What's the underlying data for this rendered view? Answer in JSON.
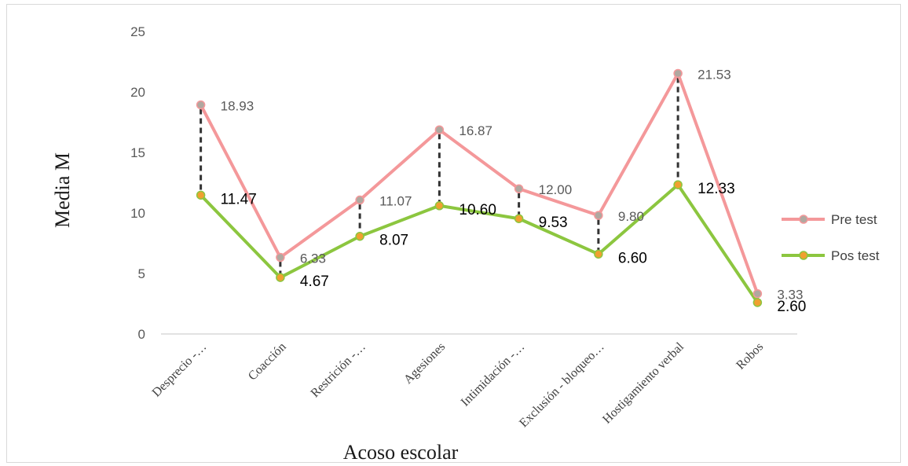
{
  "chart_data": {
    "type": "line",
    "title": "",
    "xlabel": "Acoso escolar",
    "ylabel": "Media M",
    "ylim": [
      0,
      25
    ],
    "yticks": [
      "0",
      "5",
      "10",
      "15",
      "20",
      "25"
    ],
    "categories": [
      "Desprecio -…",
      "Coacción",
      "Restrición -…",
      "Agesiones",
      "Intimidación -…",
      "Exclusión - bloqueo…",
      "Hostigamiento verbal",
      "Robos"
    ],
    "series": [
      {
        "name": "Pre test",
        "values": [
          18.93,
          6.33,
          11.07,
          16.87,
          12.0,
          9.8,
          21.53,
          3.33
        ],
        "labels": [
          "18.93",
          "6.33",
          "11.07",
          "16.87",
          "12.00",
          "9.80",
          "21.53",
          "3.33"
        ],
        "color": "#f4989a",
        "marker_color": "#b0a8a0"
      },
      {
        "name": "Pos test",
        "values": [
          11.47,
          4.67,
          8.07,
          10.6,
          9.53,
          6.6,
          12.33,
          2.6
        ],
        "labels": [
          "11.47",
          "4.67",
          "8.07",
          "10.60",
          "9.53",
          "6.60",
          "12.33",
          "2.60"
        ],
        "color": "#8cc63f",
        "marker_color": "#f0a030"
      }
    ],
    "grid": false,
    "legend_position": "right",
    "drop_lines": true
  }
}
